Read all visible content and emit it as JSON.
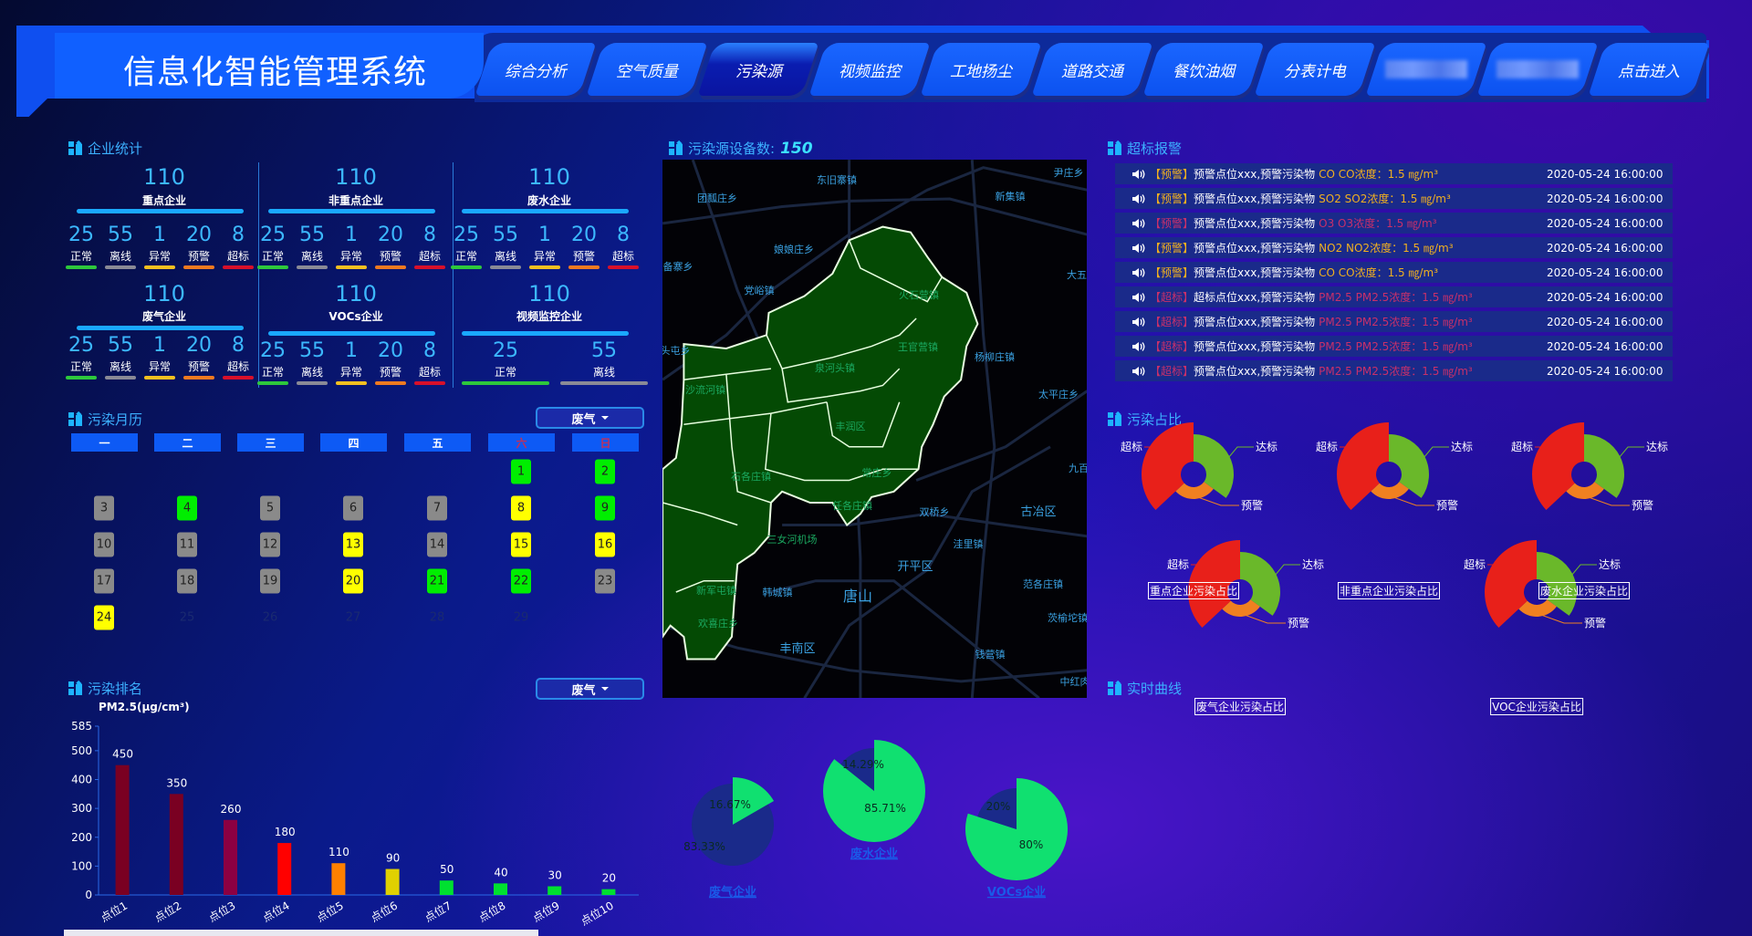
{
  "header": {
    "title": "信息化智能管理系统",
    "tabs": [
      {
        "label": "综合分析"
      },
      {
        "label": "空气质量"
      },
      {
        "label": "污染源",
        "active": true
      },
      {
        "label": "视频监控"
      },
      {
        "label": "工地扬尘"
      },
      {
        "label": "道路交通"
      },
      {
        "label": "餐饮油烟"
      },
      {
        "label": "分表计电"
      },
      {
        "label": "",
        "blurred": true
      },
      {
        "label": "",
        "blurred": true
      },
      {
        "label": "点击进入"
      }
    ]
  },
  "enterprise_stats": {
    "title": "企业统计",
    "cards": [
      {
        "total": "110",
        "name": "重点企业",
        "items": [
          {
            "v": "25",
            "l": "正常"
          },
          {
            "v": "55",
            "l": "离线"
          },
          {
            "v": "1",
            "l": "异常"
          },
          {
            "v": "20",
            "l": "预警"
          },
          {
            "v": "8",
            "l": "超标"
          }
        ]
      },
      {
        "total": "110",
        "name": "非重点企业",
        "items": [
          {
            "v": "25",
            "l": "正常"
          },
          {
            "v": "55",
            "l": "离线"
          },
          {
            "v": "1",
            "l": "异常"
          },
          {
            "v": "20",
            "l": "预警"
          },
          {
            "v": "8",
            "l": "超标"
          }
        ]
      },
      {
        "total": "110",
        "name": "废水企业",
        "items": [
          {
            "v": "25",
            "l": "正常"
          },
          {
            "v": "55",
            "l": "离线"
          },
          {
            "v": "1",
            "l": "异常"
          },
          {
            "v": "20",
            "l": "预警"
          },
          {
            "v": "8",
            "l": "超标"
          }
        ]
      },
      {
        "total": "110",
        "name": "废气企业",
        "items": [
          {
            "v": "25",
            "l": "正常"
          },
          {
            "v": "55",
            "l": "离线"
          },
          {
            "v": "1",
            "l": "异常"
          },
          {
            "v": "20",
            "l": "预警"
          },
          {
            "v": "8",
            "l": "超标"
          }
        ]
      },
      {
        "total": "110",
        "name": "VOCs企业",
        "items": [
          {
            "v": "25",
            "l": "正常"
          },
          {
            "v": "55",
            "l": "离线"
          },
          {
            "v": "1",
            "l": "异常"
          },
          {
            "v": "20",
            "l": "预警"
          },
          {
            "v": "8",
            "l": "超标"
          }
        ]
      },
      {
        "total": "110",
        "name": "视频监控企业",
        "items": [
          {
            "v": "25",
            "l": "正常"
          },
          {
            "v": "55",
            "l": "离线"
          }
        ]
      }
    ],
    "status_colors": {
      "正常": "#2ec83c",
      "离线": "#8a8a96",
      "异常": "#f5c020",
      "预警": "#f07a20",
      "超标": "#d8102a"
    }
  },
  "calendar": {
    "title": "污染月历",
    "dropdown": "废气",
    "weekdays": [
      "一",
      "二",
      "三",
      "四",
      "五",
      "六",
      "日"
    ],
    "weekend_color": "#c0305a",
    "days": [
      {
        "d": "1",
        "s": "good"
      },
      {
        "d": "2",
        "s": "good"
      },
      {
        "d": "3",
        "s": "none"
      },
      {
        "d": "4",
        "s": "good"
      },
      {
        "d": "5",
        "s": "none"
      },
      {
        "d": "6",
        "s": "none"
      },
      {
        "d": "7",
        "s": "none"
      },
      {
        "d": "8",
        "s": "warn"
      },
      {
        "d": "9",
        "s": "good"
      },
      {
        "d": "10",
        "s": "none"
      },
      {
        "d": "11",
        "s": "none"
      },
      {
        "d": "12",
        "s": "none"
      },
      {
        "d": "13",
        "s": "warn"
      },
      {
        "d": "14",
        "s": "none"
      },
      {
        "d": "15",
        "s": "warn"
      },
      {
        "d": "16",
        "s": "warn"
      },
      {
        "d": "17",
        "s": "none"
      },
      {
        "d": "18",
        "s": "none"
      },
      {
        "d": "19",
        "s": "none"
      },
      {
        "d": "20",
        "s": "warn"
      },
      {
        "d": "21",
        "s": "good"
      },
      {
        "d": "22",
        "s": "good"
      },
      {
        "d": "23",
        "s": "none"
      },
      {
        "d": "24",
        "s": "warn"
      },
      {
        "d": "25",
        "s": "future"
      },
      {
        "d": "26",
        "s": "future"
      },
      {
        "d": "27",
        "s": "future"
      },
      {
        "d": "28",
        "s": "future"
      },
      {
        "d": "29",
        "s": "future"
      }
    ],
    "colors": {
      "good": "#00ee00",
      "warn": "#ffff00",
      "none": "#8a8a8a"
    }
  },
  "ranking": {
    "title": "污染排名",
    "dropdown": "废气",
    "chart_data": {
      "type": "bar",
      "ylabel": "PM2.5(μg/cm³)",
      "ylim": [
        0,
        585
      ],
      "yticks": [
        0,
        100,
        200,
        300,
        400,
        500,
        585
      ],
      "categories": [
        "点位1",
        "点位2",
        "点位3",
        "点位4",
        "点位5",
        "点位6",
        "点位7",
        "点位8",
        "点位9",
        "点位10"
      ],
      "values": [
        450,
        350,
        260,
        180,
        110,
        90,
        50,
        40,
        30,
        20
      ],
      "colors": [
        "#7a0022",
        "#7a0022",
        "#8c0042",
        "#ff0000",
        "#ff8000",
        "#e0d000",
        "#00e030",
        "#00e030",
        "#00e030",
        "#00e030"
      ]
    }
  },
  "map": {
    "title": "污染源设备数:",
    "device_count": "150",
    "region_color": "#044a04",
    "labels": [
      "东旧寨镇",
      "团瓢庄乡",
      "尹庄乡",
      "新集镇",
      "娘娘庄乡",
      "备寨乡",
      "党峪镇",
      "大五",
      "火石营镇",
      "王官营镇",
      "杨柳庄镇",
      "头屯乡",
      "泉河头镇",
      "沙流河镇",
      "太平庄乡",
      "丰润区",
      "石各庄镇",
      "常庄乡",
      "九百",
      "任各庄镇",
      "双桥乡",
      "古冶区",
      "三女河机场",
      "洼里镇",
      "开平区",
      "范各庄镇",
      "新军屯镇",
      "韩城镇",
      "唐山",
      "茨榆坨镇",
      "欢喜庄乡",
      "丰南区",
      "钱营镇",
      "中红肉"
    ]
  },
  "bottom_pies": {
    "chart_data": [
      {
        "type": "pie",
        "name": "废气企业",
        "slices": [
          {
            "value": 16.67,
            "label": "16.67%",
            "color": "#10e070"
          },
          {
            "value": 83.33,
            "label": "83.33%",
            "color": "#1a2a8a"
          }
        ]
      },
      {
        "type": "pie",
        "name": "废水企业",
        "slices": [
          {
            "value": 85.71,
            "label": "85.71%",
            "color": "#10e070"
          },
          {
            "value": 14.29,
            "label": "14.29%",
            "color": "#1a2a8a"
          }
        ]
      },
      {
        "type": "pie",
        "name": "VOCs企业",
        "slices": [
          {
            "value": 80,
            "label": "80%",
            "color": "#10e070"
          },
          {
            "value": 20,
            "label": "20%",
            "color": "#1a2a8a"
          }
        ]
      }
    ]
  },
  "alarms": {
    "title": "超标报警",
    "rows": [
      {
        "tag": "【预警】",
        "text": "预警点位xxx,预警污染物",
        "pollutant": "CO CO浓度：1.5 ㎎/m³",
        "time": "2020-05-24 16:00:00",
        "color": "#f0b020"
      },
      {
        "tag": "【预警】",
        "text": "预警点位xxx,预警污染物",
        "pollutant": "SO2 SO2浓度：1.5 ㎎/m³",
        "time": "2020-05-24 16:00:00",
        "color": "#f0b020"
      },
      {
        "tag": "【预警】",
        "text": "预警点位xxx,预警污染物",
        "pollutant": "O3 O3浓度：1.5 ㎎/m³",
        "time": "2020-05-24 16:00:00",
        "color": "#c8306a"
      },
      {
        "tag": "【预警】",
        "text": "预警点位xxx,预警污染物",
        "pollutant": "NO2 NO2浓度：1.5 ㎎/m³",
        "time": "2020-05-24 16:00:00",
        "color": "#f0b020"
      },
      {
        "tag": "【预警】",
        "text": "预警点位xxx,预警污染物",
        "pollutant": "CO CO浓度：1.5 ㎎/m³",
        "time": "2020-05-24 16:00:00",
        "color": "#f0b020"
      },
      {
        "tag": "【超标】",
        "text": "超标点位xxx,预警污染物",
        "pollutant": "PM2.5 PM2.5浓度：1.5 ㎎/m³",
        "time": "2020-05-24 16:00:00",
        "color": "#c8306a"
      },
      {
        "tag": "【超标】",
        "text": "预警点位xxx,预警污染物",
        "pollutant": "PM2.5 PM2.5浓度：1.5 ㎎/m³",
        "time": "2020-05-24 16:00:00",
        "color": "#c8306a"
      },
      {
        "tag": "【超标】",
        "text": "预警点位xxx,预警污染物",
        "pollutant": "PM2.5 PM2.5浓度：1.5 ㎎/m³",
        "time": "2020-05-24 16:00:00",
        "color": "#c8306a"
      },
      {
        "tag": "【超标】",
        "text": "预警点位xxx,预警污染物",
        "pollutant": "PM2.5 PM2.5浓度：1.5 ㎎/m³",
        "time": "2020-05-24 16:00:00",
        "color": "#c8306a"
      }
    ]
  },
  "ratio": {
    "title": "污染占比",
    "chart_data": [
      {
        "type": "pie",
        "name": "重点企业污染占比",
        "slices": [
          {
            "label": "达标",
            "value": 35,
            "color": "#6ab82a"
          },
          {
            "label": "预警",
            "value": 28,
            "color": "#f08020"
          },
          {
            "label": "超标",
            "value": 37,
            "color": "#e8201a"
          }
        ]
      },
      {
        "type": "pie",
        "name": "非重点企业污染占比",
        "slices": [
          {
            "label": "达标",
            "value": 35,
            "color": "#6ab82a"
          },
          {
            "label": "预警",
            "value": 28,
            "color": "#f08020"
          },
          {
            "label": "超标",
            "value": 37,
            "color": "#e8201a"
          }
        ]
      },
      {
        "type": "pie",
        "name": "废水企业污染占比",
        "slices": [
          {
            "label": "达标",
            "value": 35,
            "color": "#6ab82a"
          },
          {
            "label": "预警",
            "value": 28,
            "color": "#f08020"
          },
          {
            "label": "超标",
            "value": 37,
            "color": "#e8201a"
          }
        ]
      },
      {
        "type": "pie",
        "name": "废气企业污染占比",
        "slices": [
          {
            "label": "达标",
            "value": 35,
            "color": "#6ab82a"
          },
          {
            "label": "预警",
            "value": 28,
            "color": "#f08020"
          },
          {
            "label": "超标",
            "value": 37,
            "color": "#e8201a"
          }
        ]
      },
      {
        "type": "pie",
        "name": "VOC企业污染占比",
        "slices": [
          {
            "label": "达标",
            "value": 35,
            "color": "#6ab82a"
          },
          {
            "label": "预警",
            "value": 28,
            "color": "#f08020"
          },
          {
            "label": "超标",
            "value": 37,
            "color": "#e8201a"
          }
        ]
      }
    ]
  },
  "realtime": {
    "title": "实时曲线"
  }
}
